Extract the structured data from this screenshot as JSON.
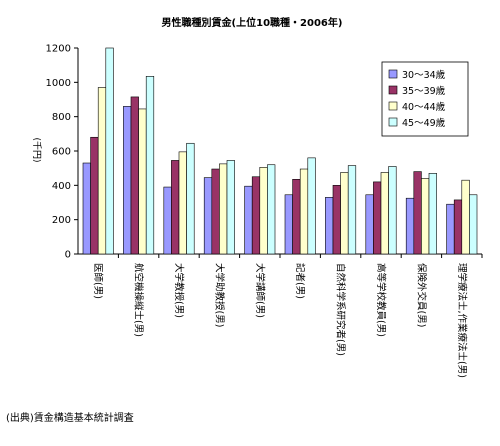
{
  "chart_data": {
    "type": "bar",
    "title": "男性職種別賃金(上位10職種・2006年)",
    "ylabel": "(千円)",
    "xlabel": "",
    "ylim": [
      0,
      1200
    ],
    "yticks": [
      0,
      200,
      400,
      600,
      800,
      1000,
      1200
    ],
    "grid": false,
    "legend_position": "top-right",
    "categories": [
      "医師(男)",
      "航空機操縦士(男)",
      "大学教授(男)",
      "大学助教授(男)",
      "大学講師(男)",
      "記者(男)",
      "自然科学系研究者(男)",
      "高等学校教員(男)",
      "保険外交員(男)",
      "理学療法士,作業療法士(男)"
    ],
    "series": [
      {
        "name": "30〜34歳",
        "color": "#9999ff",
        "values": [
          530,
          860,
          390,
          445,
          395,
          345,
          330,
          345,
          325,
          290
        ]
      },
      {
        "name": "35〜39歳",
        "color": "#993366",
        "values": [
          680,
          915,
          545,
          495,
          450,
          435,
          400,
          420,
          480,
          315
        ]
      },
      {
        "name": "40〜44歳",
        "color": "#ffffcc",
        "values": [
          970,
          845,
          595,
          525,
          505,
          495,
          475,
          475,
          440,
          430
        ]
      },
      {
        "name": "45〜49歳",
        "color": "#ccffff",
        "values": [
          1200,
          1035,
          645,
          545,
          520,
          560,
          515,
          510,
          470,
          345
        ]
      }
    ],
    "source": "(出典)賃金構造基本統計調査"
  }
}
